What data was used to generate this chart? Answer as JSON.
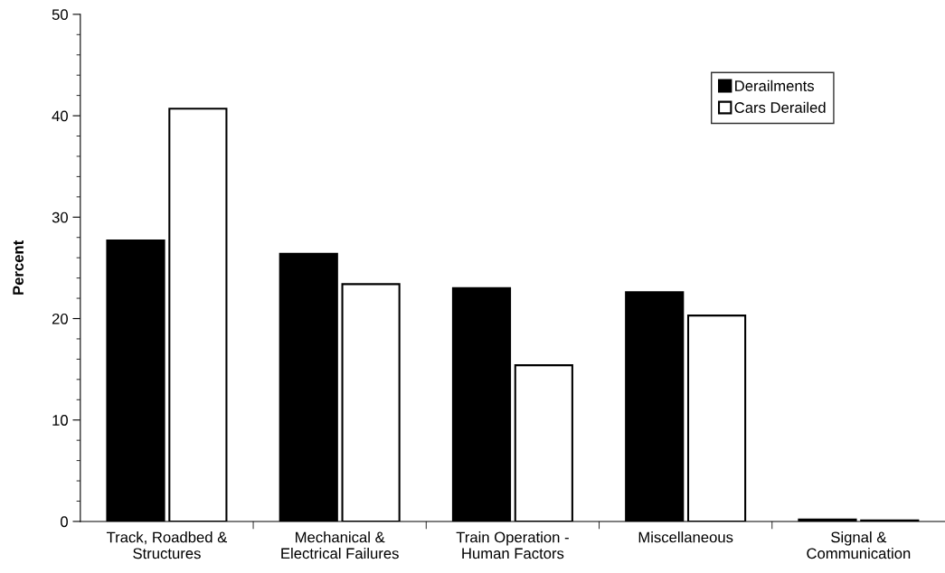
{
  "chart_data": {
    "type": "bar",
    "ylabel": "Percent",
    "categories": [
      "Track, Roadbed &\nStructures",
      "Mechanical &\nElectrical Failures",
      "Train Operation -\nHuman Factors",
      "Miscellaneous",
      "Signal &\nCommunication"
    ],
    "series": [
      {
        "name": "Derailments",
        "color": "#000000",
        "values": [
          27.7,
          26.4,
          23.0,
          22.6,
          0.2
        ]
      },
      {
        "name": "Cars Derailed",
        "color": "#ffffff",
        "values": [
          40.7,
          23.4,
          15.4,
          20.3,
          0.1
        ]
      }
    ],
    "ylim": [
      0,
      50
    ],
    "yticks": [
      0,
      {
        "value": 2,
        "label": null
      },
      {
        "value": 4,
        "label": null
      },
      {
        "value": 6,
        "label": null
      },
      {
        "value": 8,
        "label": null
      },
      10,
      {
        "value": 12,
        "label": null
      },
      {
        "value": 14,
        "label": null
      },
      {
        "value": 16,
        "label": null
      },
      {
        "value": 18,
        "label": null
      },
      20,
      {
        "value": 22,
        "label": null
      },
      {
        "value": 24,
        "label": null
      },
      {
        "value": 26,
        "label": null
      },
      {
        "value": 28,
        "label": null
      },
      30,
      {
        "value": 32,
        "label": null
      },
      {
        "value": 34,
        "label": null
      },
      {
        "value": 36,
        "label": null
      },
      {
        "value": 38,
        "label": null
      },
      40,
      {
        "value": 42,
        "label": null
      },
      {
        "value": 44,
        "label": null
      },
      {
        "value": 46,
        "label": null
      },
      {
        "value": 48,
        "label": null
      },
      50
    ],
    "grid": false,
    "legend": "top right"
  }
}
